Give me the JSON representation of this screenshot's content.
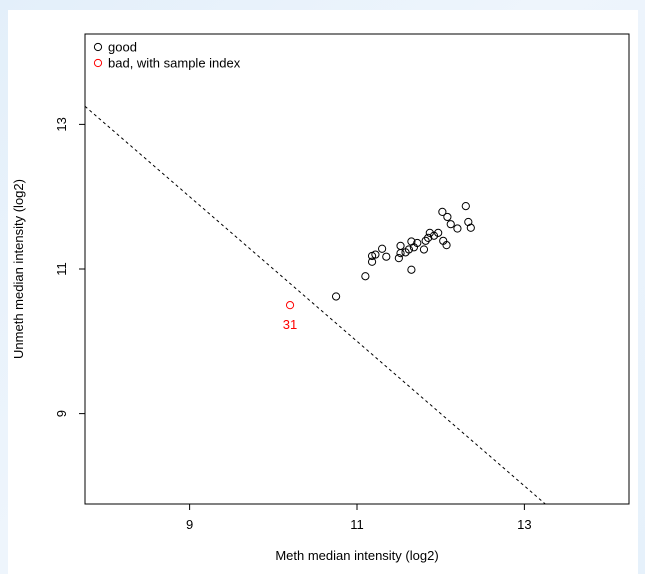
{
  "chart_data": {
    "type": "scatter",
    "title": "",
    "xlabel": "Meth median intensity (log2)",
    "ylabel": "Unmeth median intensity (log2)",
    "xlim": [
      7.75,
      14.25
    ],
    "ylim": [
      7.75,
      14.25
    ],
    "xticks": [
      "9",
      "11",
      "13"
    ],
    "yticks": [
      "9",
      "11",
      "13"
    ],
    "grid": false,
    "legend_position": "top-left",
    "legend": [
      {
        "label": "good",
        "color": "#000000"
      },
      {
        "label": "bad, with sample index",
        "color": "#ff0000"
      }
    ],
    "cutoff_line": {
      "style": "dashed",
      "color": "#000000",
      "x": [
        7.75,
        13.25
      ],
      "y": [
        13.25,
        7.75
      ]
    },
    "series": [
      {
        "name": "good",
        "color": "#000000",
        "points": [
          [
            10.75,
            10.62
          ],
          [
            11.1,
            10.9
          ],
          [
            11.18,
            11.1
          ],
          [
            11.18,
            11.18
          ],
          [
            11.22,
            11.2
          ],
          [
            11.3,
            11.28
          ],
          [
            11.35,
            11.17
          ],
          [
            11.5,
            11.15
          ],
          [
            11.52,
            11.22
          ],
          [
            11.52,
            11.32
          ],
          [
            11.58,
            11.23
          ],
          [
            11.62,
            11.27
          ],
          [
            11.65,
            11.38
          ],
          [
            11.65,
            10.99
          ],
          [
            11.68,
            11.3
          ],
          [
            11.72,
            11.36
          ],
          [
            11.8,
            11.27
          ],
          [
            11.82,
            11.39
          ],
          [
            11.85,
            11.43
          ],
          [
            11.87,
            11.5
          ],
          [
            11.92,
            11.46
          ],
          [
            11.97,
            11.5
          ],
          [
            12.02,
            11.79
          ],
          [
            12.03,
            11.39
          ],
          [
            12.07,
            11.33
          ],
          [
            12.08,
            11.72
          ],
          [
            12.12,
            11.62
          ],
          [
            12.2,
            11.56
          ],
          [
            12.3,
            11.87
          ],
          [
            12.33,
            11.65
          ],
          [
            12.36,
            11.57
          ]
        ]
      },
      {
        "name": "bad, with sample index",
        "color": "#ff0000",
        "points": [
          [
            10.2,
            10.5
          ]
        ],
        "labels": [
          "31"
        ]
      }
    ]
  }
}
